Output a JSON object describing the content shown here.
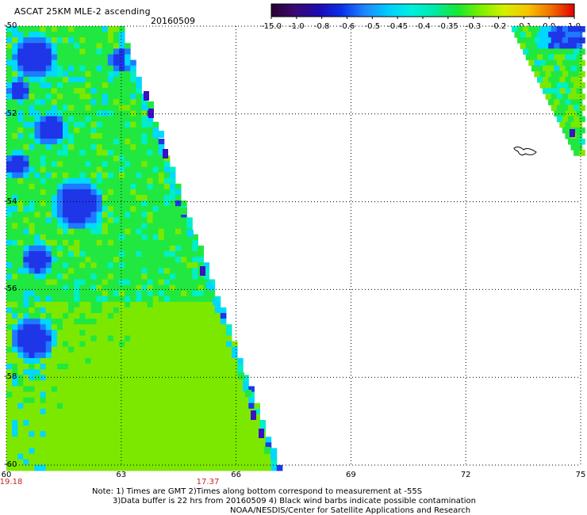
{
  "header": {
    "title": "ASCAT 25KM MLE-2 ascending",
    "date": "20160509"
  },
  "colorbar": {
    "ticks": [
      "-15.0",
      "-1.0",
      "-0.8",
      "-0.6",
      "-0.5",
      "-0.45",
      "-0.4",
      "-0.35",
      "-0.3",
      "-0.2",
      "-0.1",
      "0.0",
      "1.0"
    ],
    "colors": [
      "#2a0030",
      "#3a0a70",
      "#1d0ab0",
      "#0a2ee8",
      "#1e86ff",
      "#00ccff",
      "#00f0e0",
      "#00e9a8",
      "#16e832",
      "#7df000",
      "#d4f000",
      "#f7c400",
      "#f07000",
      "#e40000"
    ]
  },
  "map": {
    "lat_labels": [
      "-50",
      "-52",
      "-54",
      "-56",
      "-58",
      "-60"
    ],
    "lon_labels": [
      "60",
      "63",
      "66",
      "69",
      "72",
      "75"
    ],
    "time_labels": [
      "19.18",
      "17.37"
    ],
    "colors": {
      "deep_blue": "#1e36e8",
      "blue": "#1e7aff",
      "cyan": "#00d8ff",
      "aqua": "#00eec8",
      "green": "#20e840",
      "lime": "#7ce800",
      "violet": "#3a10c0",
      "time_label": "#cc2222"
    }
  },
  "notes": {
    "line1": "Note: 1) Times are GMT 2)Times along bottom correspond to measurement at -55S",
    "line2": "3)Data buffer is 22 hrs from 20160509 4) Black wind barbs indicate possible contamination",
    "line3": "NOAA/NESDIS/Center for Satellite Applications and Research"
  }
}
